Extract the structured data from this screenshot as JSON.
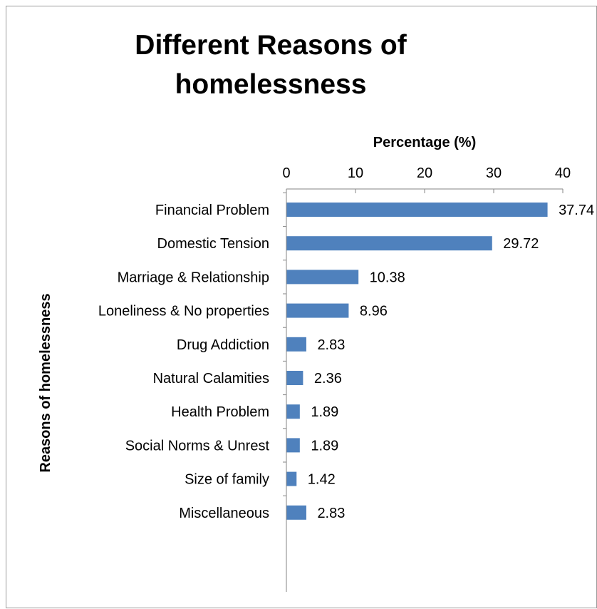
{
  "chart_data": {
    "type": "bar",
    "orientation": "horizontal",
    "title": "Different Reasons of homelessness",
    "title_lines": [
      "Different Reasons of",
      "homelessness"
    ],
    "xlabel": "Percentage (%)",
    "ylabel": "Reasons of homelessness",
    "x_axis_position": "top",
    "xlim": [
      0,
      40
    ],
    "xticks": [
      0,
      10,
      20,
      30,
      40
    ],
    "grid": false,
    "legend": "none",
    "bar_color": "#4F81BD",
    "categories": [
      "Financial Problem",
      "Domestic Tension",
      "Marriage & Relationship",
      "Loneliness & No properties",
      "Drug Addiction",
      "Natural Calamities",
      "Health Problem",
      "Social Norms & Unrest",
      "Size of family",
      "Miscellaneous"
    ],
    "values": [
      37.74,
      29.72,
      10.38,
      8.96,
      2.83,
      2.36,
      1.89,
      1.89,
      1.42,
      2.83
    ],
    "value_labels": [
      "37.74",
      "29.72",
      "10.38",
      "8.96",
      "2.83",
      "2.36",
      "1.89",
      "1.89",
      "1.42",
      "2.83"
    ]
  }
}
